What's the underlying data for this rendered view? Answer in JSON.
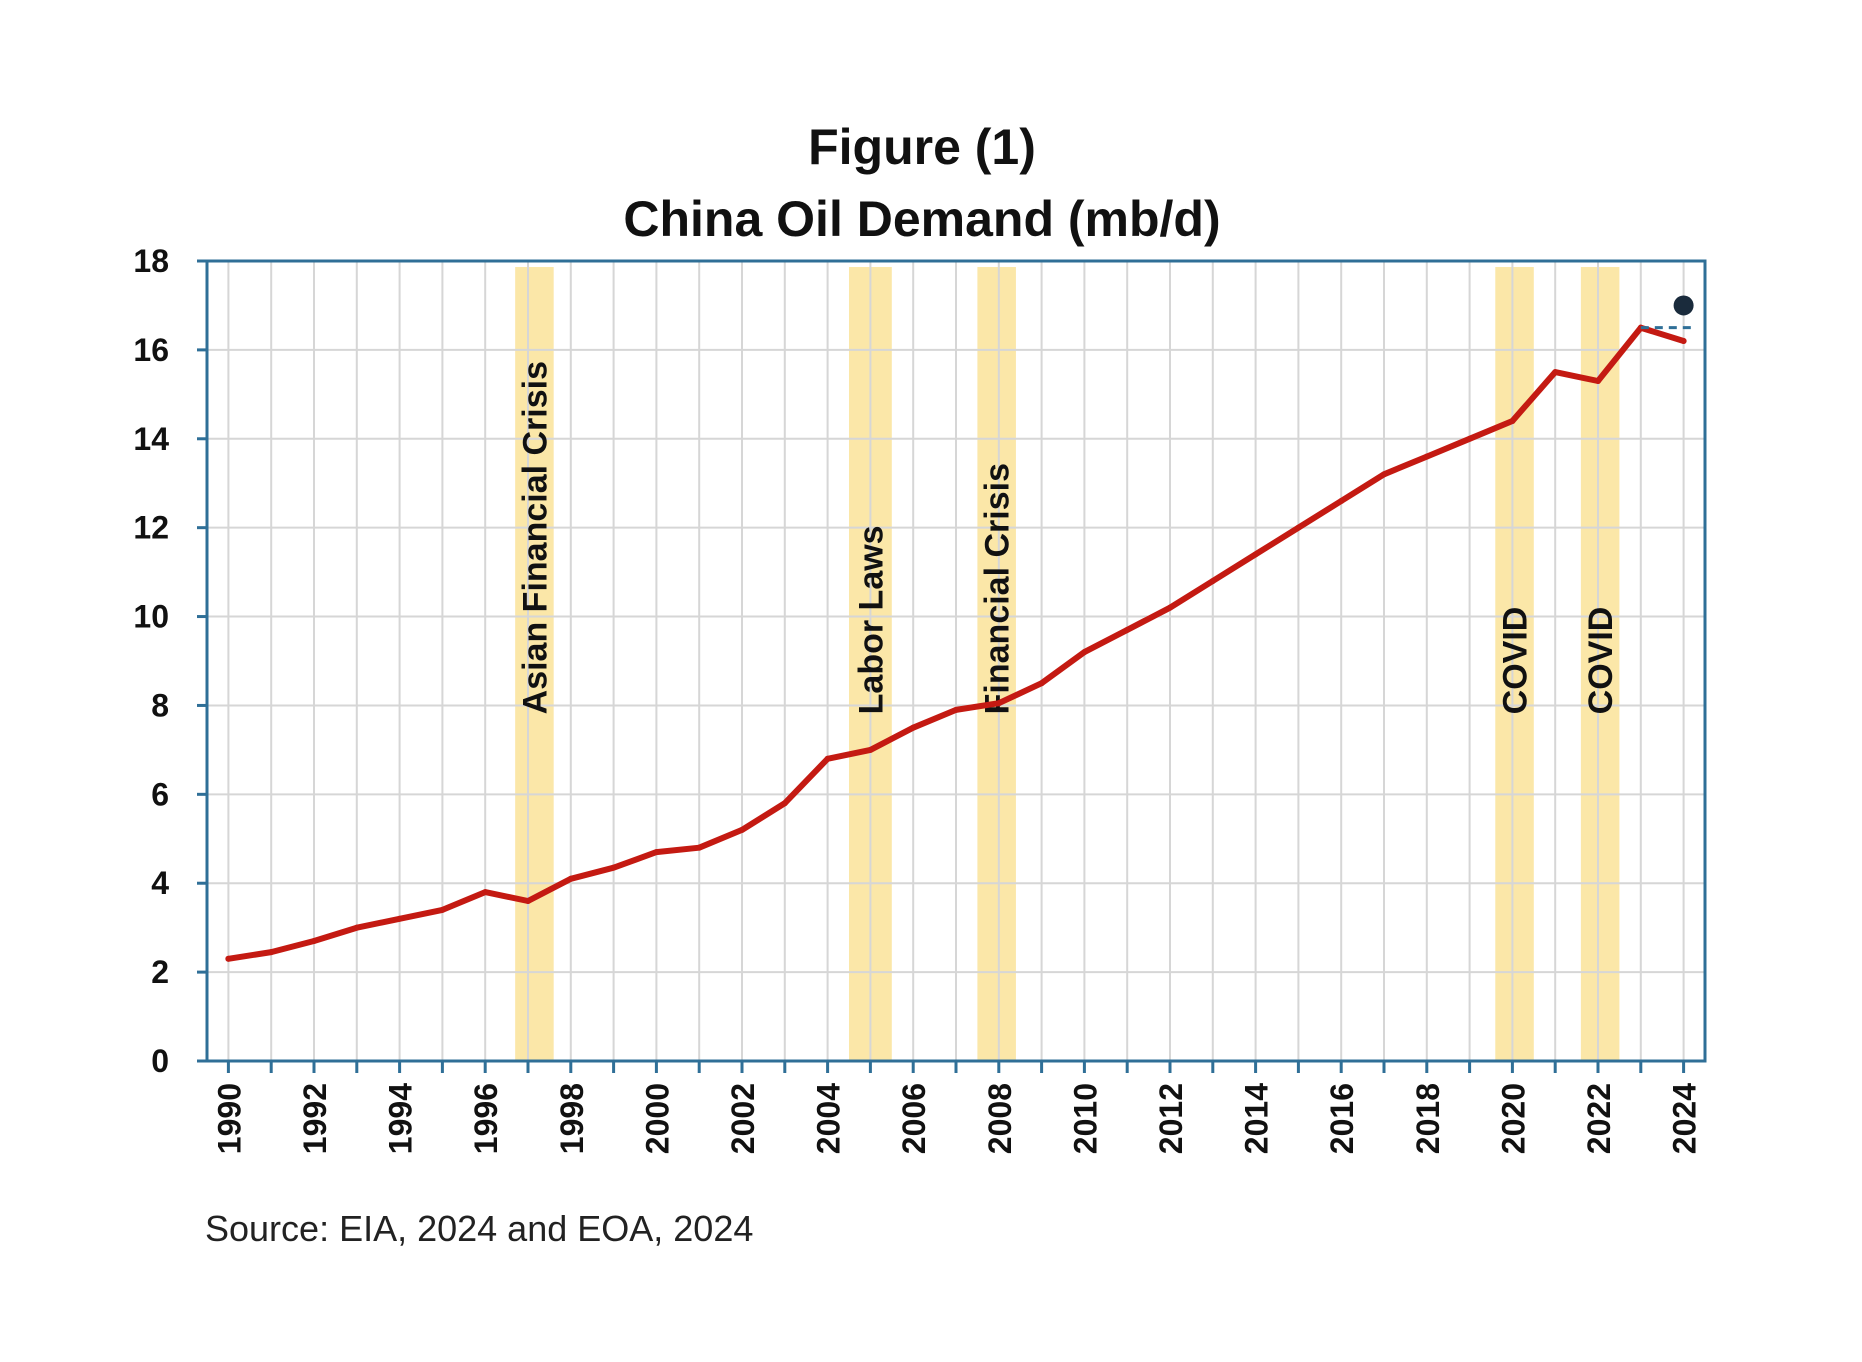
{
  "chart_data": {
    "type": "line",
    "title": "Figure (1)",
    "subtitle": "China Oil Demand (mb/d)",
    "source": "Source: EIA, 2024 and EOA, 2024",
    "xlabel": "",
    "ylabel": "",
    "ylim": [
      0,
      18
    ],
    "yticks": [
      0,
      2,
      4,
      6,
      8,
      10,
      12,
      14,
      16,
      18
    ],
    "xlim": [
      1990,
      2024
    ],
    "xtick_labels": [
      "1990",
      "1992",
      "1994",
      "1996",
      "1998",
      "2000",
      "2002",
      "2004",
      "2006",
      "2008",
      "2010",
      "2012",
      "2014",
      "2016",
      "2018",
      "2020",
      "2022",
      "2024"
    ],
    "grid": true,
    "legend": "none",
    "colors": {
      "line": "#c41a12",
      "band": "#fbe7a8",
      "axis": "#2f6f97",
      "grid": "#d6d6d6",
      "forecast_marker": "#1a2b3c",
      "forecast_dash": "#2f6f97"
    },
    "series": [
      {
        "x": [
          1990,
          1991,
          1992,
          1993,
          1994,
          1995,
          1996,
          1997,
          1998,
          1999,
          2000,
          2001,
          2002,
          2003,
          2004,
          2005,
          2006,
          2007,
          2008,
          2009,
          2010,
          2011,
          2012,
          2013,
          2014,
          2015,
          2016,
          2017,
          2018,
          2019,
          2020,
          2021,
          2022,
          2023,
          2024
        ],
        "values": [
          2.3,
          2.45,
          2.7,
          3.0,
          3.2,
          3.4,
          3.8,
          3.6,
          4.1,
          4.35,
          4.7,
          4.8,
          5.2,
          5.8,
          6.8,
          7.0,
          7.5,
          7.9,
          8.05,
          8.5,
          9.2,
          9.7,
          10.2,
          10.8,
          11.4,
          12.0,
          12.6,
          13.2,
          13.6,
          14.0,
          14.4,
          15.5,
          15.3,
          16.5,
          16.2
        ]
      }
    ],
    "forecast_point": {
      "x": 2024,
      "value": 17.0
    },
    "forecast_reference": {
      "x_start": 2023,
      "x_end": 2024.3,
      "value": 16.5
    },
    "bands": [
      {
        "x_start": 1996.7,
        "x_end": 1997.6,
        "label": "Asian Financial Crisis"
      },
      {
        "x_start": 2004.5,
        "x_end": 2005.5,
        "label": "Labor Laws"
      },
      {
        "x_start": 2007.5,
        "x_end": 2008.4,
        "label": "Financial Crisis"
      },
      {
        "x_start": 2019.6,
        "x_end": 2020.5,
        "label": "COVID"
      },
      {
        "x_start": 2021.6,
        "x_end": 2022.5,
        "label": "COVID"
      }
    ]
  }
}
